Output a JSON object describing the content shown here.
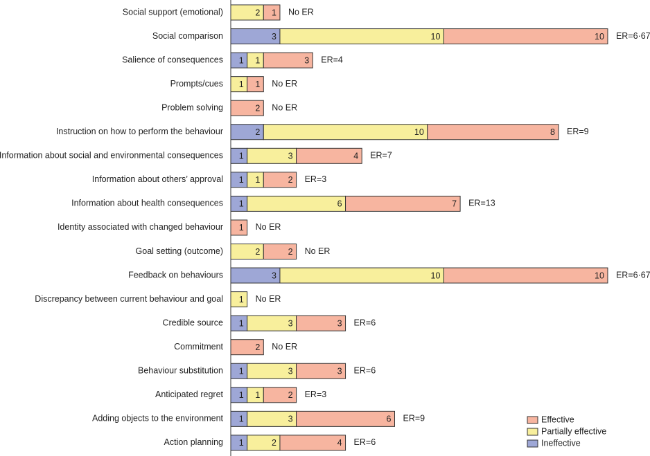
{
  "chart_data": {
    "type": "stacked-bar",
    "categories": [
      "Social support (emotional)",
      "Social comparison",
      "Salience of consequences",
      "Prompts/cues",
      "Problem solving",
      "Instruction on how to perform the behaviour",
      "Information about social and environmental consequences",
      "Information about others’ approval",
      "Information about health consequences",
      "Identity associated with changed behaviour",
      "Goal setting (outcome)",
      "Feedback on behaviours",
      "Discrepancy between current  behaviour and goal",
      "Credible source",
      "Commitment",
      "Behaviour substitution",
      "Anticipated regret",
      "Adding objects to the environment",
      "Action planning"
    ],
    "series": [
      {
        "name": "Ineffective",
        "color": "#9ea7d6",
        "values": [
          null,
          3,
          1,
          null,
          null,
          2,
          1,
          1,
          1,
          null,
          null,
          3,
          null,
          1,
          null,
          1,
          1,
          1,
          1
        ]
      },
      {
        "name": "Partially effective",
        "color": "#f8ef9c",
        "values": [
          2,
          10,
          1,
          1,
          null,
          10,
          3,
          1,
          6,
          null,
          2,
          10,
          1,
          3,
          null,
          3,
          1,
          3,
          2
        ]
      },
      {
        "name": "Effective",
        "color": "#f7b5a0",
        "values": [
          1,
          10,
          3,
          1,
          2,
          8,
          4,
          2,
          7,
          1,
          2,
          10,
          null,
          3,
          2,
          3,
          2,
          6,
          4
        ]
      }
    ],
    "annotations": [
      "No ER",
      "ER=6·67",
      "ER=4",
      "No ER",
      "No ER",
      "ER=9",
      "ER=7",
      "ER=3",
      "ER=13",
      "No ER",
      "No ER",
      "ER=6·67",
      "No ER",
      "ER=6",
      "No ER",
      "ER=6",
      "ER=3",
      "ER=9",
      "ER=6"
    ],
    "legend": "bottom-right"
  }
}
